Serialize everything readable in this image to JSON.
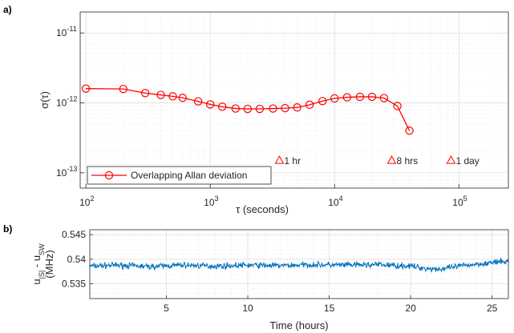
{
  "chart_data": [
    {
      "panel_label": "a)",
      "type": "line",
      "xscale": "log",
      "yscale": "log",
      "xlim": [
        90,
        250000
      ],
      "ylim": [
        6e-14,
        2e-14
      ],
      "ylim_exp": [
        -13.22,
        -10.7
      ],
      "xlabel": "τ (seconds)",
      "ylabel": "σ(τ)",
      "x_ticks": [
        {
          "value": 100,
          "base": "10",
          "exp": "2"
        },
        {
          "value": 1000,
          "base": "10",
          "exp": "3"
        },
        {
          "value": 10000,
          "base": "10",
          "exp": "4"
        },
        {
          "value": 100000,
          "base": "10",
          "exp": "5"
        }
      ],
      "y_ticks": [
        {
          "exp_value": -11,
          "base": "10",
          "exp": "-11"
        },
        {
          "exp_value": -12,
          "base": "10",
          "exp": "-12"
        },
        {
          "exp_value": -13,
          "base": "10",
          "exp": "-13"
        }
      ],
      "grid": true,
      "legend": {
        "position": "bottom-left",
        "entries": [
          "Overlapping Allan deviation"
        ]
      },
      "color": "#ff0000",
      "series": [
        {
          "name": "Overlapping Allan deviation",
          "x": [
            100,
            200,
            300,
            400,
            500,
            600,
            800,
            1000,
            1250,
            1600,
            2000,
            2500,
            3200,
            4000,
            5000,
            6300,
            8000,
            10000,
            12600,
            16000,
            20000,
            25000,
            32000,
            40000
          ],
          "y": [
            1.6e-12,
            1.58e-12,
            1.38e-12,
            1.3e-12,
            1.24e-12,
            1.18e-12,
            1.05e-12,
            9.5e-13,
            8.8e-13,
            8.3e-13,
            8.2e-13,
            8.2e-13,
            8.3e-13,
            8.4e-13,
            8.6e-13,
            9.4e-13,
            1.06e-12,
            1.16e-12,
            1.2e-12,
            1.22e-12,
            1.22e-12,
            1.17e-12,
            9e-13,
            4e-13
          ]
        }
      ],
      "annotations": [
        {
          "label": "1 hr",
          "x": 3600,
          "y_exp": -12.82,
          "marker": "triangle"
        },
        {
          "label": "8 hrs",
          "x": 28800,
          "y_exp": -12.82,
          "marker": "triangle"
        },
        {
          "label": "1 day",
          "x": 86400,
          "y_exp": -12.82,
          "marker": "triangle"
        }
      ]
    },
    {
      "panel_label": "b)",
      "type": "line",
      "xlim": [
        0.3,
        26
      ],
      "ylim": [
        0.532,
        0.546
      ],
      "xlabel": "Time (hours)",
      "ylabel_parts": {
        "a": "u",
        "a_sub": "|S|",
        "mid": " - u",
        "b_sub": "SW",
        "unit": "(MHz)"
      },
      "x_ticks": [
        5,
        10,
        15,
        20,
        25
      ],
      "y_ticks": [
        "0.535",
        "0.54",
        "0.545"
      ],
      "grid": true,
      "color": "#0072bd",
      "series": [
        {
          "x": [
            0.3,
            2,
            4,
            6,
            8,
            10,
            12,
            14,
            16,
            18,
            20,
            21,
            22,
            23,
            24,
            25,
            26
          ],
          "y": [
            0.5386,
            0.5388,
            0.5385,
            0.5388,
            0.5386,
            0.5388,
            0.5387,
            0.5389,
            0.5388,
            0.5389,
            0.5386,
            0.5381,
            0.538,
            0.5386,
            0.539,
            0.5393,
            0.5396
          ]
        }
      ]
    }
  ]
}
